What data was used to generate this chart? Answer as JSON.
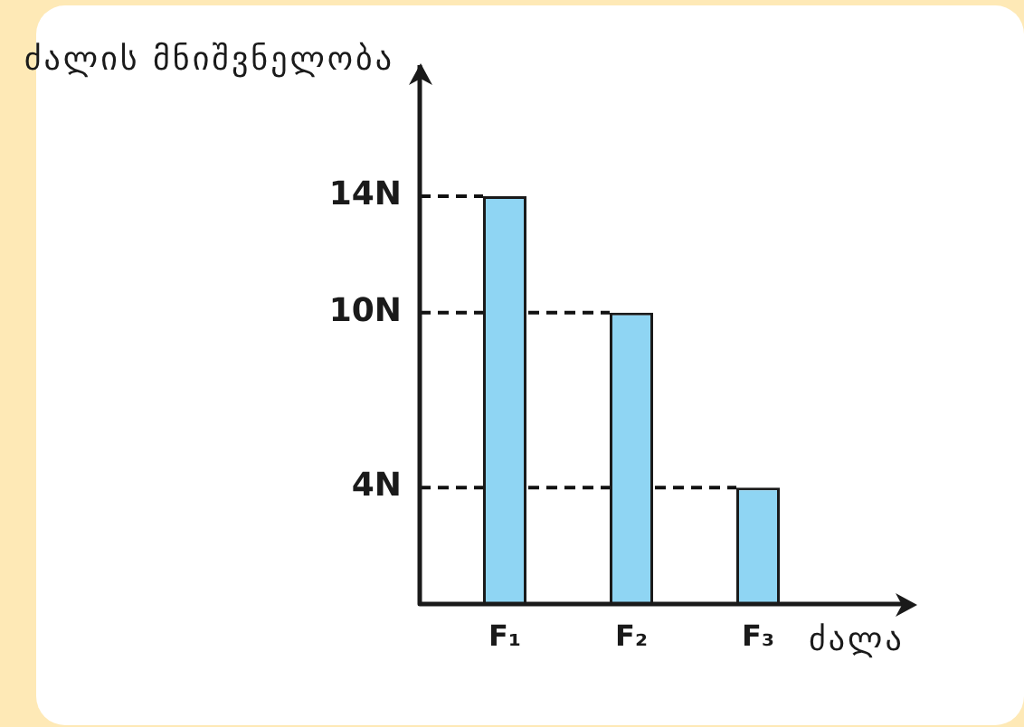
{
  "chart_data": {
    "type": "bar",
    "categories": [
      "F₁",
      "F₂",
      "F₃"
    ],
    "values": [
      14,
      10,
      4
    ],
    "color": "#8fd5f3",
    "xlabel": "ძალა",
    "ylabel": "ძალის მნიშვნელობა",
    "ylim": [
      0,
      18.5
    ],
    "yticks": [
      {
        "value": 4,
        "label": "4N"
      },
      {
        "value": 10,
        "label": "10N"
      },
      {
        "value": 14,
        "label": "14N"
      }
    ],
    "ref_lines": [
      {
        "axis": "y",
        "value": 14,
        "line_style": "dashed",
        "color": "#111111"
      },
      {
        "axis": "y",
        "value": 10,
        "line_style": "dashed",
        "color": "#111111"
      },
      {
        "axis": "y",
        "value": 4,
        "line_style": "dashed",
        "color": "#111111"
      }
    ]
  }
}
